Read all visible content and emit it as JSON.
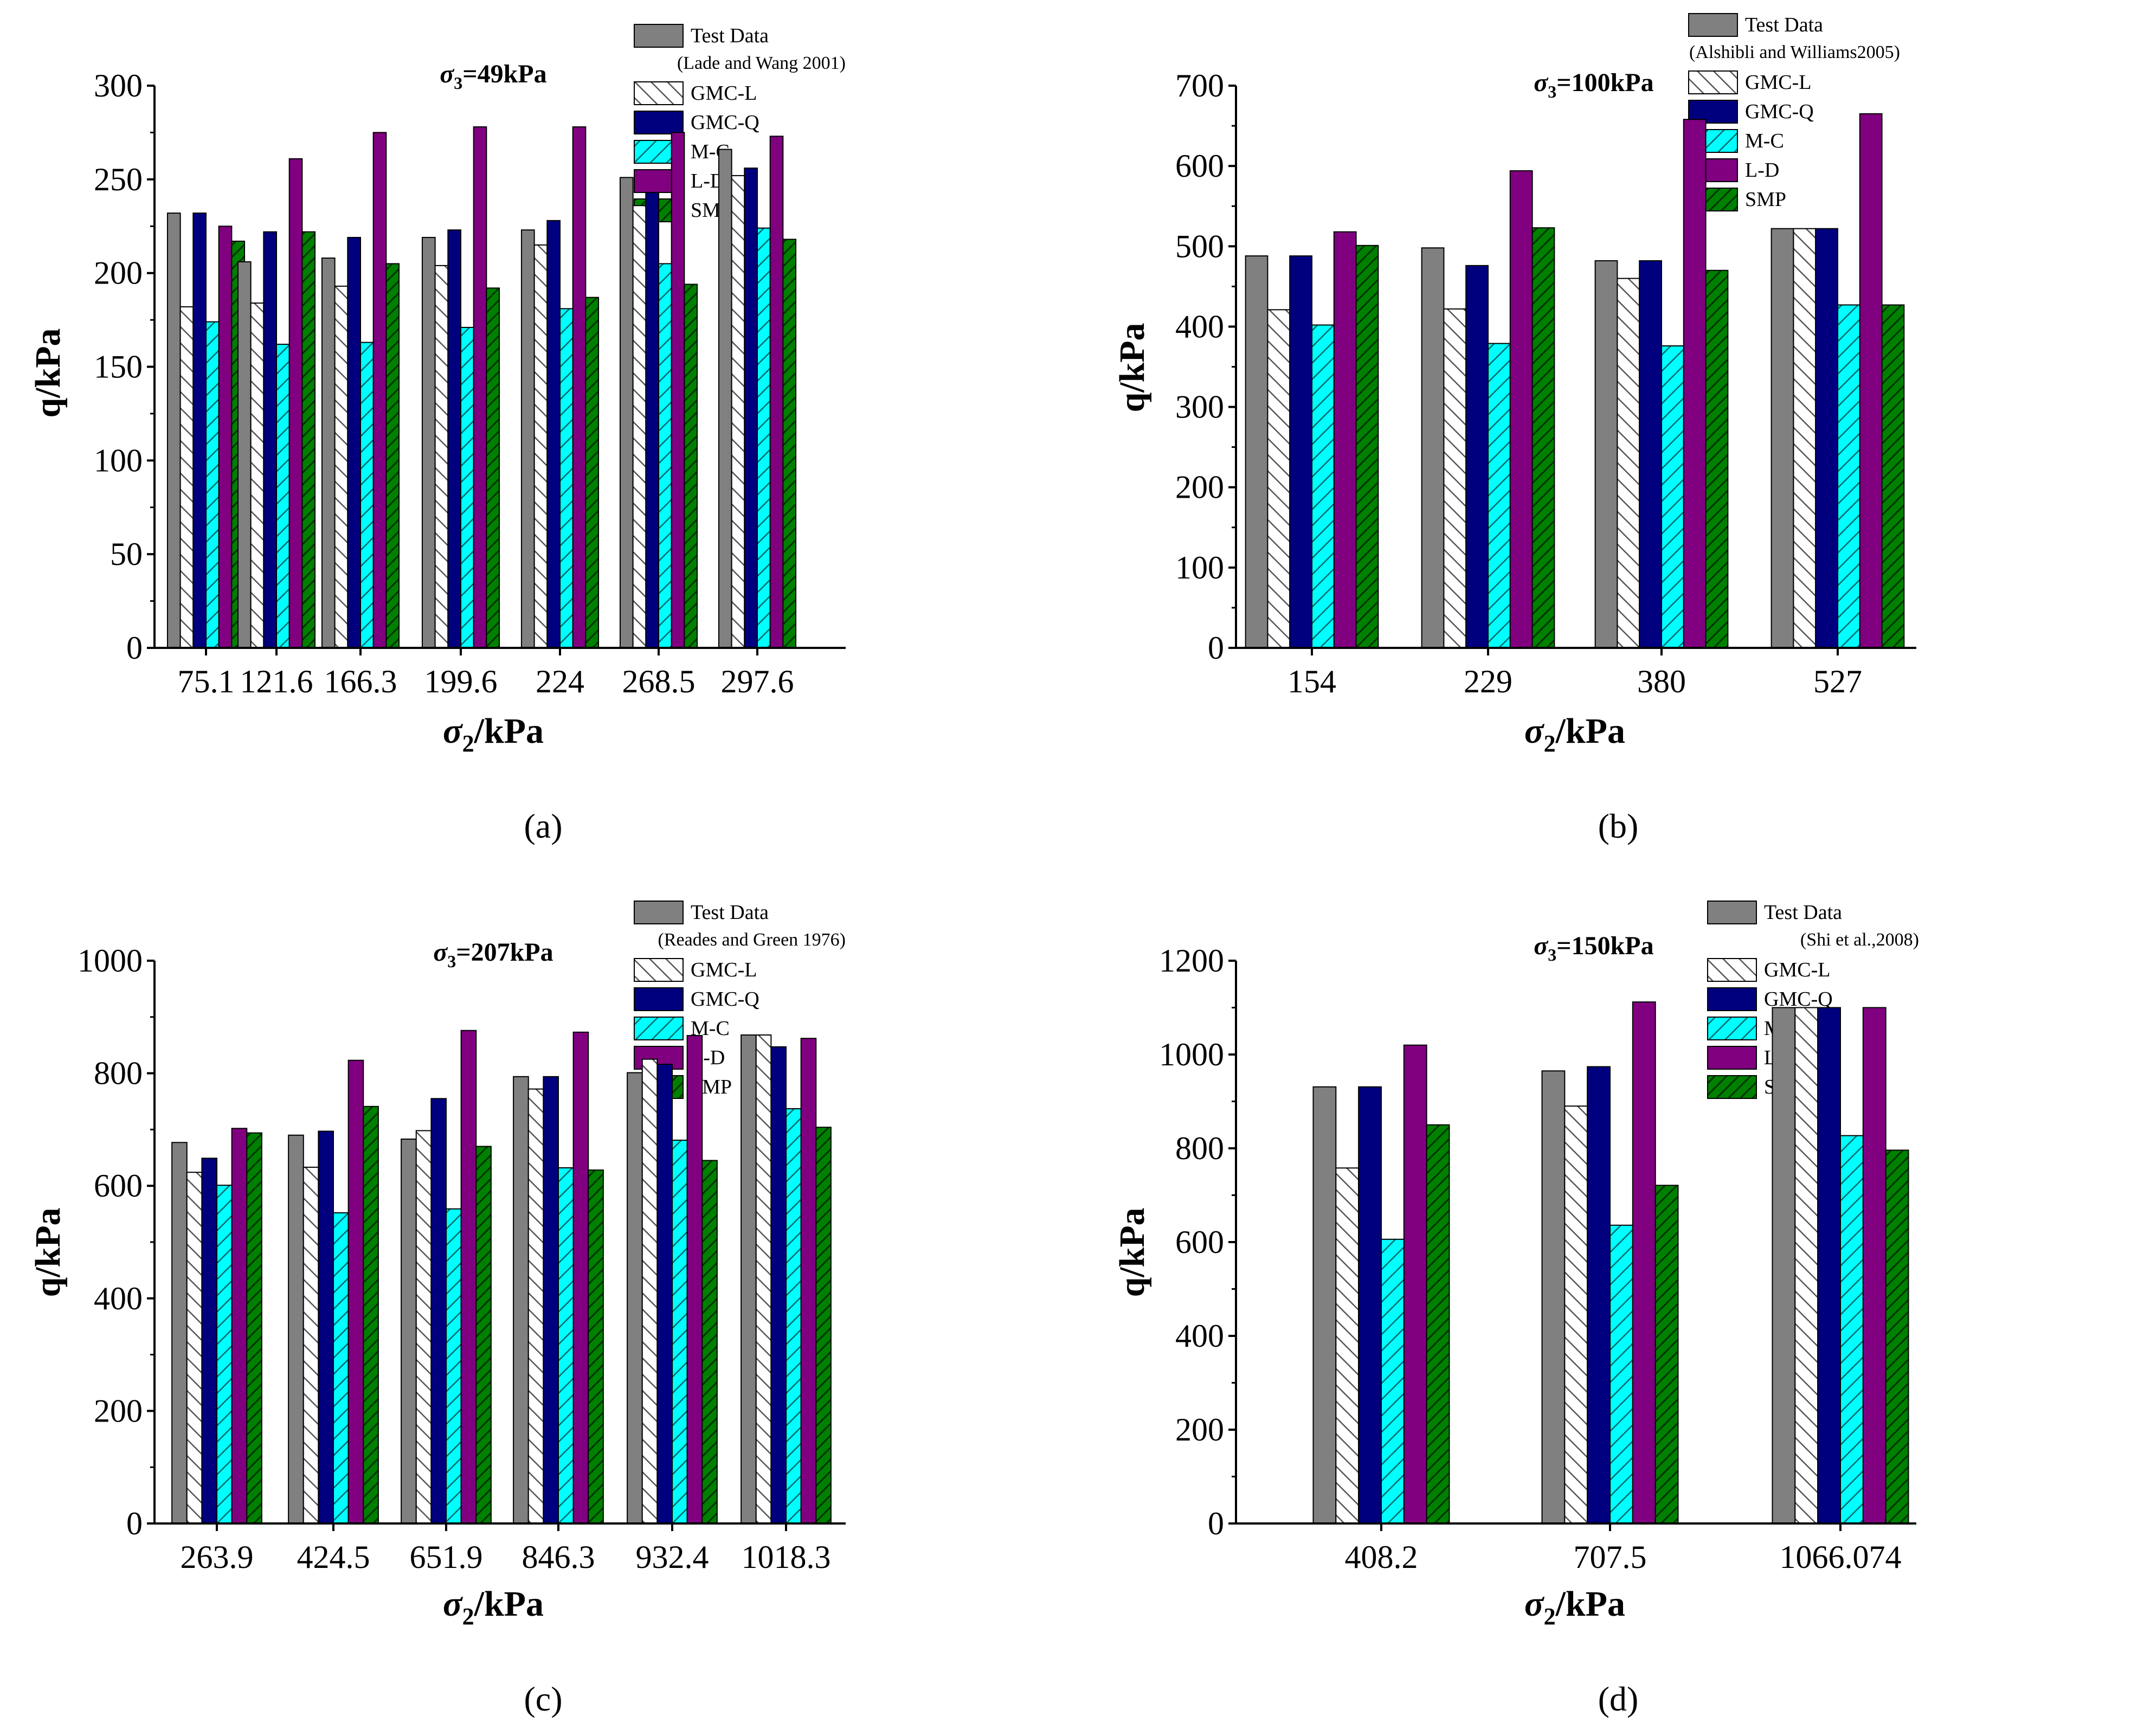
{
  "figure": {
    "series_names": [
      "Test Data",
      "GMC-L",
      "GMC-Q",
      "M-C",
      "L-D",
      "SMP"
    ],
    "series_colors": {
      "Test Data": "#808080",
      "GMC-L": "#ffffff",
      "GMC-Q": "#00007f",
      "M-C": "#00ffff",
      "L-D": "#800080",
      "SMP": "#008000"
    }
  },
  "chart_data": [
    {
      "type": "bar",
      "panel_label": "(a)",
      "title": "σ3=49kPa",
      "legend_note": "(Lade and Wang 2001)",
      "xlabel": "σ2/kPa",
      "ylabel": "q/kPa",
      "ylim": [
        0,
        300
      ],
      "yticks": [
        0,
        50,
        100,
        150,
        200,
        250,
        300
      ],
      "categories": [
        "75.1",
        "121.6",
        "166.3",
        "199.6",
        "224",
        "268.5",
        "297.6"
      ],
      "series": [
        {
          "name": "Test Data",
          "values": [
            232,
            206,
            208,
            219,
            223,
            251,
            266
          ]
        },
        {
          "name": "GMC-L",
          "values": [
            182,
            184,
            193,
            204,
            215,
            236,
            252
          ]
        },
        {
          "name": "GMC-Q",
          "values": [
            232,
            222,
            219,
            223,
            228,
            243,
            256
          ]
        },
        {
          "name": "M-C",
          "values": [
            174,
            162,
            163,
            171,
            181,
            205,
            224
          ]
        },
        {
          "name": "L-D",
          "values": [
            225,
            261,
            275,
            278,
            278,
            275,
            273
          ]
        },
        {
          "name": "SMP",
          "values": [
            217,
            222,
            205,
            192,
            187,
            194,
            218
          ]
        }
      ]
    },
    {
      "type": "bar",
      "panel_label": "(b)",
      "title": "σ3=100kPa",
      "legend_note": "(Alshibli and Williams2005)",
      "xlabel": "σ2/kPa",
      "ylabel": "q/kPa",
      "ylim": [
        0,
        700
      ],
      "yticks": [
        0,
        100,
        200,
        300,
        400,
        500,
        600,
        700
      ],
      "categories": [
        "154",
        "229",
        "380",
        "527"
      ],
      "series": [
        {
          "name": "Test Data",
          "values": [
            488,
            498,
            482,
            522
          ]
        },
        {
          "name": "GMC-L",
          "values": [
            421,
            422,
            460,
            522
          ]
        },
        {
          "name": "GMC-Q",
          "values": [
            488,
            476,
            482,
            522
          ]
        },
        {
          "name": "M-C",
          "values": [
            402,
            379,
            376,
            427
          ]
        },
        {
          "name": "L-D",
          "values": [
            518,
            594,
            658,
            665
          ]
        },
        {
          "name": "SMP",
          "values": [
            501,
            523,
            470,
            427
          ]
        }
      ]
    },
    {
      "type": "bar",
      "panel_label": "(c)",
      "title": "σ3=207kPa",
      "legend_note": "(Reades and Green 1976)",
      "xlabel": "σ2/kPa",
      "ylabel": "q/kPa",
      "ylim": [
        0,
        1000
      ],
      "yticks": [
        0,
        200,
        400,
        600,
        800,
        1000
      ],
      "categories": [
        "263.9",
        "424.5",
        "651.9",
        "846.3",
        "932.4",
        "1018.3"
      ],
      "series": [
        {
          "name": "Test Data",
          "values": [
            677,
            690,
            683,
            794,
            801,
            868
          ]
        },
        {
          "name": "GMC-L",
          "values": [
            624,
            633,
            698,
            772,
            825,
            868
          ]
        },
        {
          "name": "GMC-Q",
          "values": [
            649,
            697,
            755,
            794,
            816,
            847
          ]
        },
        {
          "name": "M-C",
          "values": [
            601,
            552,
            559,
            632,
            681,
            737
          ]
        },
        {
          "name": "L-D",
          "values": [
            702,
            823,
            876,
            873,
            867,
            862
          ]
        },
        {
          "name": "SMP",
          "values": [
            694,
            741,
            670,
            628,
            645,
            704
          ]
        }
      ]
    },
    {
      "type": "bar",
      "panel_label": "(d)",
      "title": "σ3=150kPa",
      "legend_note": "(Shi et al.,2008)",
      "xlabel": "σ2/kPa",
      "ylabel": "q/kPa",
      "ylim": [
        0,
        1200
      ],
      "yticks": [
        0,
        200,
        400,
        600,
        800,
        1000,
        1200
      ],
      "categories": [
        "408.2",
        "707.5",
        "1066.074"
      ],
      "series": [
        {
          "name": "Test Data",
          "values": [
            931,
            965,
            1100
          ]
        },
        {
          "name": "GMC-L",
          "values": [
            758,
            890,
            1100
          ]
        },
        {
          "name": "GMC-Q",
          "values": [
            931,
            974,
            1100
          ]
        },
        {
          "name": "M-C",
          "values": [
            606,
            636,
            827
          ]
        },
        {
          "name": "L-D",
          "values": [
            1020,
            1112,
            1100
          ]
        },
        {
          "name": "SMP",
          "values": [
            850,
            721,
            796
          ]
        }
      ]
    }
  ]
}
